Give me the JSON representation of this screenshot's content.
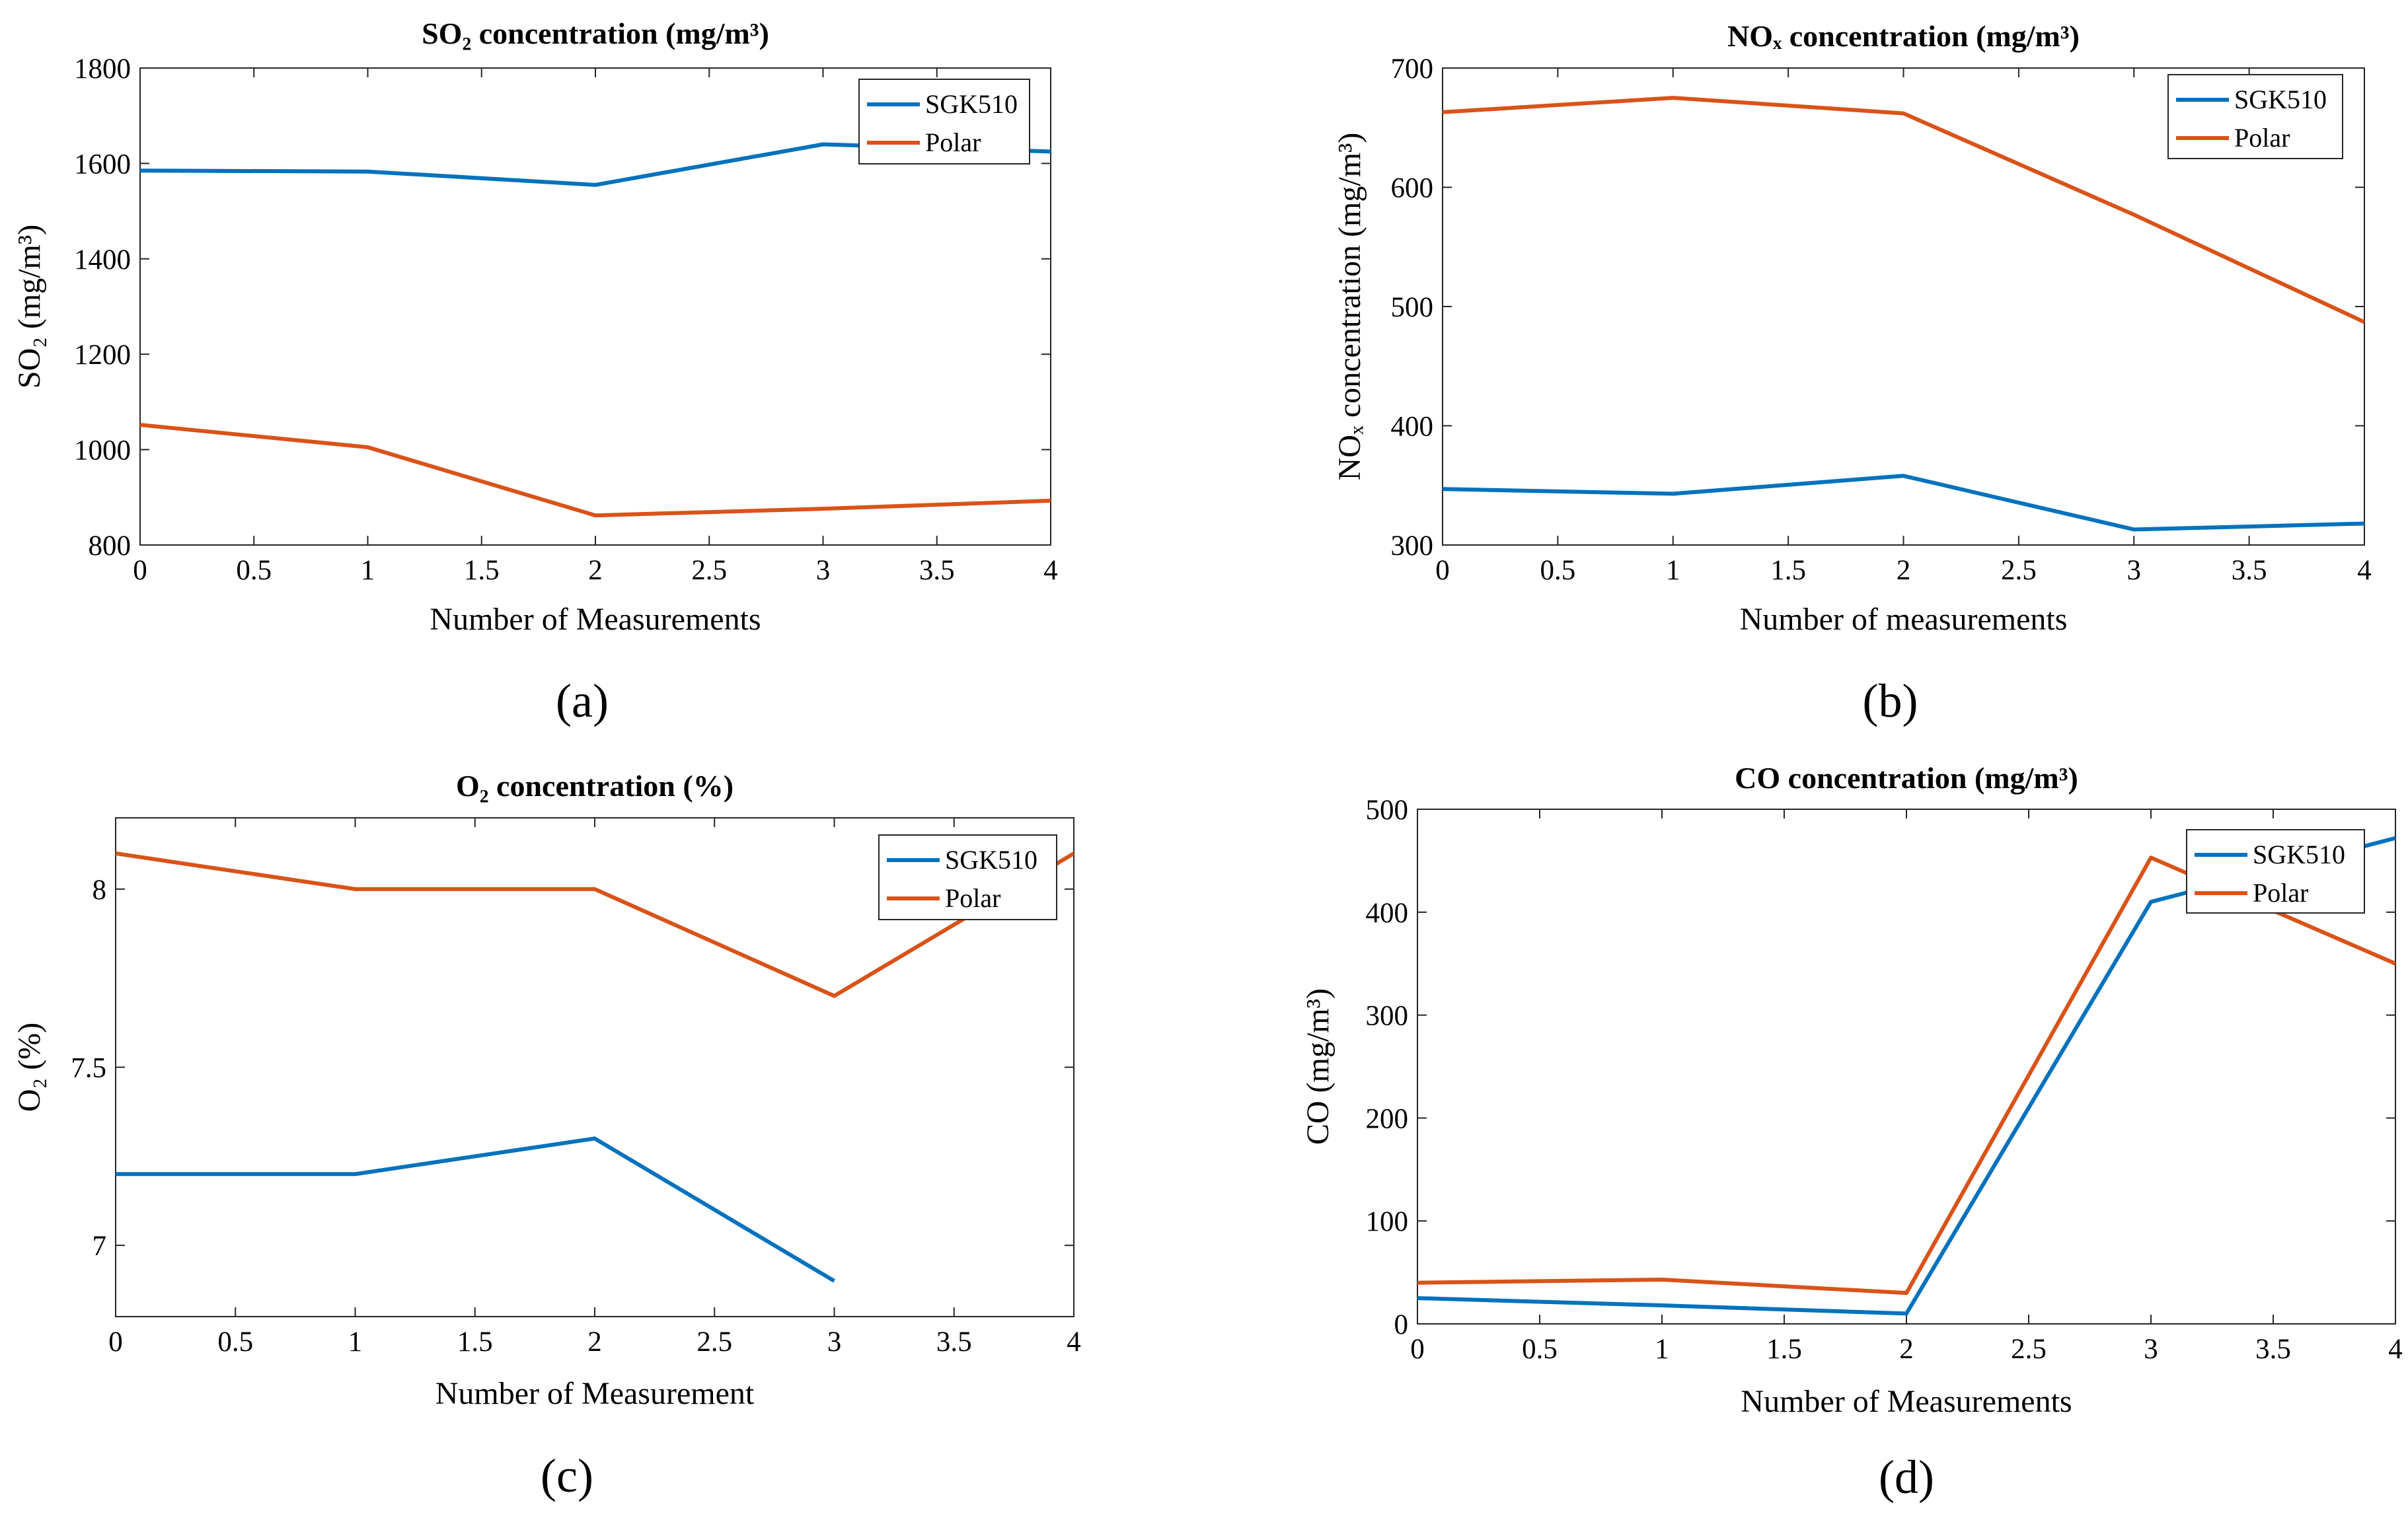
{
  "chart_data": [
    {
      "type": "line",
      "title": "SO₂ concentration (mg/m³)",
      "xlabel": "Number of Measurements",
      "ylabel": "SO₂ (mg/m³)",
      "x": [
        0,
        1,
        2,
        3,
        4
      ],
      "xlim": [
        0,
        4
      ],
      "ylim": [
        800,
        1800
      ],
      "xticks": [
        "0",
        "0.5",
        "1",
        "1.5",
        "2",
        "2.5",
        "3",
        "3.5",
        "4"
      ],
      "yticks": [
        "800",
        "1000",
        "1200",
        "1400",
        "1600",
        "1800"
      ],
      "series": [
        {
          "name": "SGK510",
          "values": [
            1585,
            1583,
            1555,
            1640,
            1625
          ],
          "color": "#0072BD"
        },
        {
          "name": "Polar",
          "values": [
            1052,
            1005,
            862,
            876,
            893
          ],
          "color": "#D95319"
        }
      ],
      "legend": "top-right",
      "panel_label": "(a)"
    },
    {
      "type": "line",
      "title": "NOₓ concentration (mg/m³)",
      "xlabel": "Number of measurements",
      "ylabel": "NOₓ concentration (mg/m³)",
      "x": [
        0,
        1,
        2,
        3,
        4
      ],
      "xlim": [
        0,
        4
      ],
      "ylim": [
        300,
        700
      ],
      "xticks": [
        "0",
        "0.5",
        "1",
        "1.5",
        "2",
        "2.5",
        "3",
        "3.5",
        "4"
      ],
      "yticks": [
        "300",
        "400",
        "500",
        "600",
        "700"
      ],
      "series": [
        {
          "name": "SGK510",
          "values": [
            347,
            343,
            358,
            313,
            318
          ],
          "color": "#0072BD"
        },
        {
          "name": "Polar",
          "values": [
            663,
            675,
            662,
            577,
            487
          ],
          "color": "#D95319"
        }
      ],
      "legend": "top-right",
      "panel_label": "(b)"
    },
    {
      "type": "line",
      "title": "O₂ concentration (%)",
      "xlabel": "Number of Measurement",
      "ylabel": "O₂ (%)",
      "x": [
        0,
        1,
        2,
        3,
        4
      ],
      "xlim": [
        0,
        4
      ],
      "ylim": [
        6.8,
        8.2
      ],
      "xticks": [
        "0",
        "0.5",
        "1",
        "1.5",
        "2",
        "2.5",
        "3",
        "3.5",
        "4"
      ],
      "yticks": [
        "7",
        "7.5",
        "8"
      ],
      "series": [
        {
          "name": "SGK510",
          "values": [
            7.2,
            7.2,
            7.3,
            6.9,
            null
          ],
          "color": "#0072BD"
        },
        {
          "name": "Polar",
          "values": [
            8.1,
            8.0,
            8.0,
            7.7,
            8.1
          ],
          "color": "#D95319"
        }
      ],
      "legend": "top-right",
      "panel_label": "(c)"
    },
    {
      "type": "line",
      "title": "CO concentration (mg/m³)",
      "xlabel": "Number of Measurements",
      "ylabel": "CO (mg/m³)",
      "x": [
        0,
        1,
        2,
        3,
        4
      ],
      "xlim": [
        0,
        4
      ],
      "ylim": [
        0,
        500
      ],
      "xticks": [
        "0",
        "0.5",
        "1",
        "1.5",
        "2",
        "2.5",
        "3",
        "3.5",
        "4"
      ],
      "yticks": [
        "0",
        "100",
        "200",
        "300",
        "400",
        "500"
      ],
      "series": [
        {
          "name": "SGK510",
          "values": [
            25,
            18,
            10,
            410,
            472
          ],
          "color": "#0072BD"
        },
        {
          "name": "Polar",
          "values": [
            40,
            43,
            30,
            453,
            350
          ],
          "color": "#D95319"
        }
      ],
      "legend": "top-right",
      "panel_label": "(d)"
    }
  ]
}
